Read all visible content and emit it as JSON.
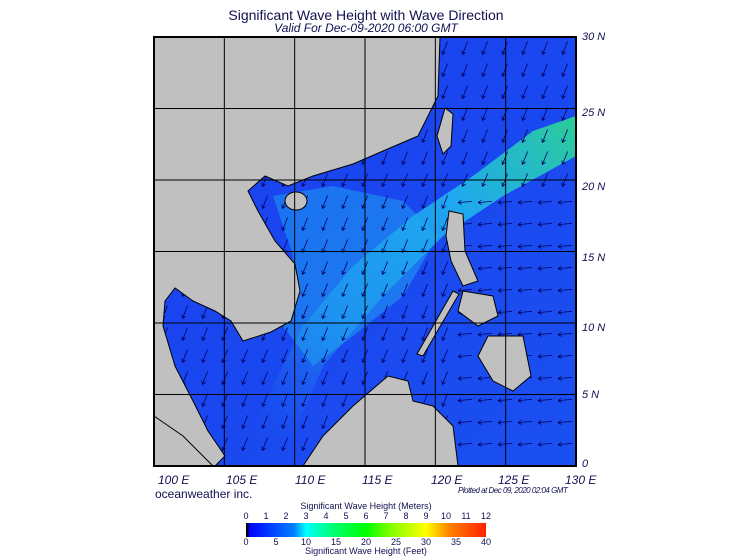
{
  "title": "Significant Wave Height with Wave Direction",
  "subtitle": "Valid For Dec-09-2020 06:00 GMT",
  "map": {
    "lat_labels": [
      "30 N",
      "25 N",
      "20 N",
      "15 N",
      "10 N",
      "5 N",
      "0"
    ],
    "lon_labels": [
      "100 E",
      "105 E",
      "110 E",
      "115 E",
      "120 E",
      "125 E",
      "130 E"
    ],
    "land_color": "#c0c0c0",
    "sea_color": "#1c4ff0"
  },
  "footer": {
    "brand": "oceanweather inc.",
    "plotted": "Plotted at Dec 09, 2020 02:04 GMT"
  },
  "colorbar": {
    "title_meters": "Significant Wave Height (Meters)",
    "title_feet": "Significant Wave Height (Feet)",
    "meters": [
      "0",
      "1",
      "2",
      "3",
      "4",
      "5",
      "6",
      "7",
      "8",
      "9",
      "10",
      "11",
      "12"
    ],
    "feet": [
      "0",
      "5",
      "10",
      "15",
      "20",
      "25",
      "30",
      "35",
      "40"
    ]
  }
}
